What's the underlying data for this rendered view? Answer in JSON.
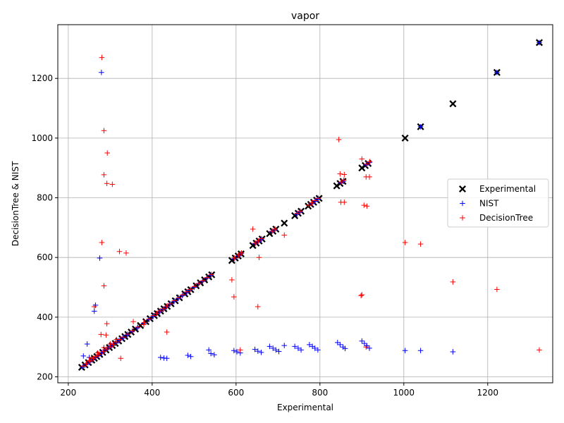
{
  "chart_data": {
    "type": "scatter",
    "title": "vapor",
    "xlabel": "Experimental",
    "ylabel": "DecisionTree & NIST",
    "xlim": [
      175,
      1355
    ],
    "ylim": [
      180,
      1380
    ],
    "xticks": [
      200,
      400,
      600,
      800,
      1000,
      1200
    ],
    "yticks": [
      200,
      400,
      600,
      800,
      1000,
      1200
    ],
    "grid": true,
    "legend_position": "right",
    "colors": {
      "experimental": "#000000",
      "nist": "#0000ff",
      "decisiontree": "#ff0000",
      "grid": "#b0b0b0",
      "legend_border": "#cccccc"
    },
    "series": [
      {
        "name": "Experimental",
        "marker": "x",
        "points": [
          [
            232,
            232
          ],
          [
            240,
            240
          ],
          [
            248,
            248
          ],
          [
            256,
            256
          ],
          [
            262,
            262
          ],
          [
            268,
            268
          ],
          [
            275,
            275
          ],
          [
            282,
            282
          ],
          [
            290,
            290
          ],
          [
            298,
            298
          ],
          [
            305,
            305
          ],
          [
            312,
            312
          ],
          [
            320,
            320
          ],
          [
            328,
            328
          ],
          [
            335,
            335
          ],
          [
            342,
            342
          ],
          [
            350,
            350
          ],
          [
            360,
            360
          ],
          [
            372,
            372
          ],
          [
            385,
            385
          ],
          [
            395,
            395
          ],
          [
            405,
            405
          ],
          [
            412,
            412
          ],
          [
            420,
            420
          ],
          [
            428,
            428
          ],
          [
            436,
            436
          ],
          [
            445,
            445
          ],
          [
            455,
            455
          ],
          [
            465,
            465
          ],
          [
            478,
            478
          ],
          [
            485,
            485
          ],
          [
            492,
            492
          ],
          [
            505,
            505
          ],
          [
            515,
            515
          ],
          [
            525,
            525
          ],
          [
            535,
            535
          ],
          [
            542,
            542
          ],
          [
            590,
            590
          ],
          [
            598,
            598
          ],
          [
            605,
            605
          ],
          [
            612,
            612
          ],
          [
            640,
            640
          ],
          [
            648,
            648
          ],
          [
            655,
            655
          ],
          [
            662,
            662
          ],
          [
            680,
            680
          ],
          [
            688,
            688
          ],
          [
            695,
            695
          ],
          [
            715,
            715
          ],
          [
            740,
            740
          ],
          [
            748,
            748
          ],
          [
            755,
            755
          ],
          [
            772,
            772
          ],
          [
            778,
            778
          ],
          [
            785,
            785
          ],
          [
            792,
            792
          ],
          [
            798,
            798
          ],
          [
            840,
            840
          ],
          [
            848,
            848
          ],
          [
            855,
            855
          ],
          [
            900,
            900
          ],
          [
            908,
            908
          ],
          [
            915,
            915
          ],
          [
            1003,
            1000
          ],
          [
            1040,
            1038
          ],
          [
            1117,
            1115
          ],
          [
            1222,
            1220
          ],
          [
            1323,
            1320
          ]
        ]
      },
      {
        "name": "NIST",
        "marker": "+",
        "points": [
          [
            234,
            232
          ],
          [
            242,
            241
          ],
          [
            250,
            249
          ],
          [
            258,
            257
          ],
          [
            265,
            264
          ],
          [
            272,
            271
          ],
          [
            280,
            281
          ],
          [
            288,
            290
          ],
          [
            296,
            298
          ],
          [
            304,
            305
          ],
          [
            312,
            313
          ],
          [
            320,
            321
          ],
          [
            330,
            330
          ],
          [
            340,
            340
          ],
          [
            352,
            351
          ],
          [
            365,
            364
          ],
          [
            380,
            379
          ],
          [
            392,
            392
          ],
          [
            402,
            402
          ],
          [
            410,
            412
          ],
          [
            418,
            418
          ],
          [
            426,
            426
          ],
          [
            434,
            434
          ],
          [
            442,
            444
          ],
          [
            452,
            452
          ],
          [
            462,
            462
          ],
          [
            472,
            472
          ],
          [
            482,
            482
          ],
          [
            490,
            490
          ],
          [
            500,
            500
          ],
          [
            510,
            512
          ],
          [
            520,
            520
          ],
          [
            530,
            531
          ],
          [
            540,
            540
          ],
          [
            595,
            595
          ],
          [
            605,
            605
          ],
          [
            612,
            613
          ],
          [
            645,
            646
          ],
          [
            652,
            652
          ],
          [
            660,
            660
          ],
          [
            685,
            686
          ],
          [
            692,
            692
          ],
          [
            745,
            745
          ],
          [
            752,
            752
          ],
          [
            780,
            780
          ],
          [
            788,
            788
          ],
          [
            795,
            795
          ],
          [
            850,
            850
          ],
          [
            856,
            855
          ],
          [
            910,
            910
          ],
          [
            918,
            918
          ],
          [
            1040,
            1038
          ],
          [
            1222,
            1220
          ],
          [
            1323,
            1320
          ],
          [
            279,
            1220
          ],
          [
            275,
            598
          ],
          [
            262,
            420
          ],
          [
            265,
            440
          ],
          [
            245,
            310
          ],
          [
            236,
            270
          ],
          [
            250,
            265
          ],
          [
            420,
            265
          ],
          [
            428,
            263
          ],
          [
            435,
            262
          ],
          [
            485,
            272
          ],
          [
            492,
            268
          ],
          [
            535,
            290
          ],
          [
            540,
            278
          ],
          [
            548,
            274
          ],
          [
            595,
            288
          ],
          [
            602,
            284
          ],
          [
            610,
            280
          ],
          [
            645,
            292
          ],
          [
            652,
            286
          ],
          [
            660,
            282
          ],
          [
            680,
            302
          ],
          [
            688,
            296
          ],
          [
            695,
            290
          ],
          [
            702,
            285
          ],
          [
            715,
            305
          ],
          [
            740,
            302
          ],
          [
            748,
            296
          ],
          [
            755,
            290
          ],
          [
            775,
            308
          ],
          [
            782,
            302
          ],
          [
            788,
            296
          ],
          [
            795,
            290
          ],
          [
            842,
            315
          ],
          [
            848,
            308
          ],
          [
            855,
            300
          ],
          [
            860,
            295
          ],
          [
            900,
            320
          ],
          [
            906,
            312
          ],
          [
            912,
            304
          ],
          [
            918,
            296
          ],
          [
            1003,
            288
          ],
          [
            1040,
            288
          ],
          [
            1117,
            284
          ]
        ]
      },
      {
        "name": "DecisionTree",
        "marker": "+",
        "points": [
          [
            235,
            236
          ],
          [
            243,
            244
          ],
          [
            252,
            253
          ],
          [
            260,
            262
          ],
          [
            266,
            268
          ],
          [
            274,
            276
          ],
          [
            283,
            285
          ],
          [
            291,
            293
          ],
          [
            299,
            300
          ],
          [
            307,
            309
          ],
          [
            315,
            317
          ],
          [
            323,
            325
          ],
          [
            332,
            333
          ],
          [
            342,
            343
          ],
          [
            353,
            354
          ],
          [
            366,
            367
          ],
          [
            381,
            382
          ],
          [
            393,
            394
          ],
          [
            403,
            405
          ],
          [
            411,
            413
          ],
          [
            419,
            421
          ],
          [
            427,
            428
          ],
          [
            435,
            437
          ],
          [
            443,
            445
          ],
          [
            453,
            455
          ],
          [
            463,
            465
          ],
          [
            473,
            475
          ],
          [
            483,
            485
          ],
          [
            491,
            493
          ],
          [
            501,
            503
          ],
          [
            511,
            513
          ],
          [
            521,
            522
          ],
          [
            531,
            533
          ],
          [
            541,
            543
          ],
          [
            596,
            598
          ],
          [
            606,
            608
          ],
          [
            613,
            615
          ],
          [
            646,
            648
          ],
          [
            653,
            655
          ],
          [
            661,
            663
          ],
          [
            686,
            688
          ],
          [
            693,
            695
          ],
          [
            746,
            748
          ],
          [
            753,
            755
          ],
          [
            773,
            775
          ],
          [
            781,
            783
          ],
          [
            789,
            791
          ],
          [
            796,
            798
          ],
          [
            851,
            853
          ],
          [
            857,
            859
          ],
          [
            911,
            913
          ],
          [
            919,
            921
          ],
          [
            280,
            1270
          ],
          [
            285,
            1025
          ],
          [
            293,
            950
          ],
          [
            285,
            877
          ],
          [
            292,
            848
          ],
          [
            305,
            845
          ],
          [
            280,
            650
          ],
          [
            322,
            620
          ],
          [
            338,
            615
          ],
          [
            285,
            505
          ],
          [
            292,
            378
          ],
          [
            262,
            435
          ],
          [
            278,
            342
          ],
          [
            290,
            340
          ],
          [
            325,
            262
          ],
          [
            435,
            350
          ],
          [
            355,
            385
          ],
          [
            380,
            375
          ],
          [
            640,
            695
          ],
          [
            655,
            600
          ],
          [
            652,
            435
          ],
          [
            590,
            525
          ],
          [
            595,
            468
          ],
          [
            715,
            675
          ],
          [
            845,
            995
          ],
          [
            848,
            880
          ],
          [
            858,
            878
          ],
          [
            850,
            785
          ],
          [
            858,
            785
          ],
          [
            900,
            930
          ],
          [
            910,
            870
          ],
          [
            918,
            870
          ],
          [
            905,
            775
          ],
          [
            912,
            772
          ],
          [
            900,
            475
          ],
          [
            898,
            472
          ],
          [
            910,
            300
          ],
          [
            1003,
            650
          ],
          [
            1040,
            645
          ],
          [
            1117,
            518
          ],
          [
            1222,
            493
          ],
          [
            1323,
            290
          ],
          [
            610,
            290
          ],
          [
            250,
            255
          ],
          [
            255,
            265
          ],
          [
            270,
            280
          ],
          [
            285,
            298
          ],
          [
            300,
            310
          ],
          [
            315,
            325
          ]
        ]
      }
    ]
  }
}
